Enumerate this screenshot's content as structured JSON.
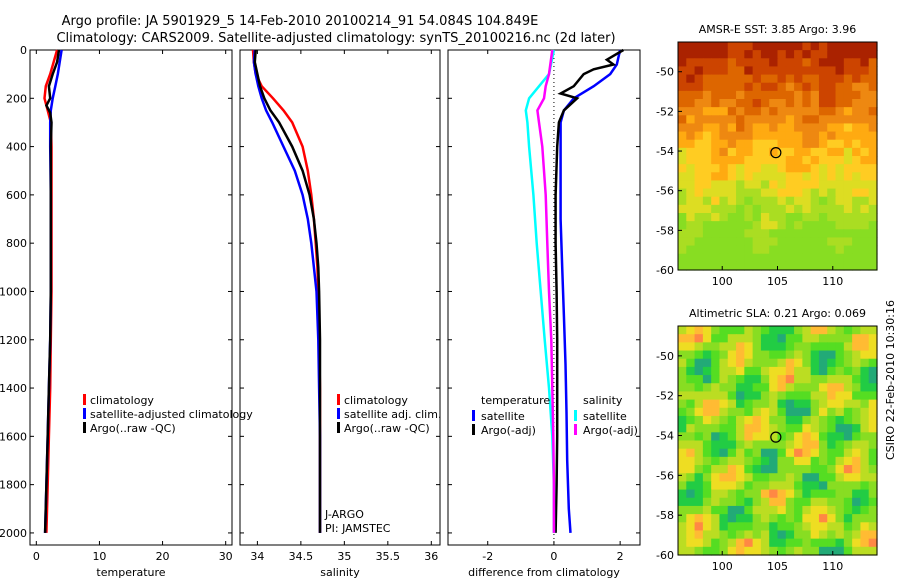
{
  "title_line1": "Argo profile: JA 5901929_5 14-Feb-2010 20100214_91 54.084S 104.849E",
  "title_line2": "Climatology: CARS2009. Satellite-adjusted climatology: synTS_20100216.nc (2d later)",
  "stamp": "CSIRO 22-Feb-2010 10:30:16",
  "colors": {
    "red": "#ff0000",
    "blue": "#0000ff",
    "black": "#000000",
    "cyan": "#00ffff",
    "magenta": "#ff00ff"
  },
  "chart_data": [
    {
      "type": "line",
      "name": "temperature-panel",
      "xlabel": "temperature",
      "ylabel": "",
      "xlim": [
        -1,
        31
      ],
      "ylim": [
        0,
        2050
      ],
      "xticks": [
        0,
        10,
        20,
        30
      ],
      "yticks": [
        0,
        200,
        400,
        600,
        800,
        1000,
        1200,
        1400,
        1600,
        1800,
        2000
      ],
      "legend": {
        "placement": "middle",
        "entries": [
          "climatology",
          "satellite-adjusted climatology",
          "Argo(..raw -QC)"
        ]
      },
      "series": [
        {
          "name": "climatology",
          "color": "red",
          "depth": [
            0,
            100,
            150,
            200,
            250,
            300,
            400,
            600,
            800,
            1000,
            1200,
            1400,
            1600,
            1800,
            2000
          ],
          "values": [
            3.3,
            2.2,
            1.5,
            1.3,
            1.8,
            2.3,
            2.4,
            2.4,
            2.4,
            2.4,
            2.3,
            2.2,
            2.0,
            1.8,
            1.6
          ]
        },
        {
          "name": "satellite-adjusted climatology",
          "color": "blue",
          "depth": [
            0,
            50,
            100,
            150,
            200,
            250,
            300,
            400,
            600,
            800,
            1000,
            1200,
            1400,
            1600,
            1800,
            2000
          ],
          "values": [
            4.0,
            3.7,
            3.4,
            3.0,
            2.6,
            2.3,
            2.2,
            2.2,
            2.3,
            2.3,
            2.3,
            2.2,
            2.0,
            1.8,
            1.6,
            1.4
          ]
        },
        {
          "name": "Argo(..raw -QC)",
          "color": "black",
          "depth": [
            0,
            50,
            100,
            150,
            200,
            230,
            260,
            300,
            400,
            600,
            800,
            1000,
            1200,
            1400,
            1600,
            1800,
            2000
          ],
          "values": [
            3.6,
            3.3,
            2.6,
            2.0,
            2.2,
            1.6,
            2.2,
            2.4,
            2.3,
            2.3,
            2.3,
            2.3,
            2.2,
            2.0,
            1.8,
            1.6,
            1.4
          ]
        }
      ]
    },
    {
      "type": "line",
      "name": "salinity-panel",
      "xlabel": "salinity",
      "ylabel": "",
      "xlim": [
        33.8,
        36.1
      ],
      "ylim": [
        0,
        2050
      ],
      "xticks": [
        34,
        34.5,
        35,
        35.5,
        36
      ],
      "yticks": [
        0,
        200,
        400,
        600,
        800,
        1000,
        1200,
        1400,
        1600,
        1800,
        2000
      ],
      "legend": {
        "placement": "middle",
        "entries": [
          "climatology",
          "satellite adj. clim.",
          "Argo(..raw -QC)"
        ]
      },
      "annotations": [
        "J-ARGO",
        "PI: JAMSTEC"
      ],
      "series": [
        {
          "name": "climatology",
          "color": "red",
          "depth": [
            0,
            50,
            100,
            150,
            200,
            250,
            300,
            400,
            500,
            600,
            700,
            800,
            900,
            1000,
            1200,
            1400,
            1600,
            1800,
            2000
          ],
          "values": [
            33.95,
            33.96,
            33.98,
            34.05,
            34.18,
            34.3,
            34.4,
            34.52,
            34.58,
            34.62,
            34.65,
            34.67,
            34.69,
            34.7,
            34.71,
            34.72,
            34.72,
            34.72,
            34.72
          ]
        },
        {
          "name": "satellite adj. clim.",
          "color": "blue",
          "depth": [
            0,
            50,
            100,
            150,
            200,
            250,
            300,
            400,
            500,
            600,
            700,
            800,
            900,
            1000,
            1200,
            1400,
            1600,
            1800,
            2000
          ],
          "values": [
            33.97,
            33.96,
            33.98,
            34.01,
            34.05,
            34.1,
            34.17,
            34.3,
            34.43,
            34.52,
            34.58,
            34.62,
            34.65,
            34.68,
            34.7,
            34.71,
            34.72,
            34.72,
            34.72
          ]
        },
        {
          "name": "Argo(..raw -QC)",
          "color": "black",
          "depth": [
            0,
            50,
            100,
            150,
            200,
            250,
            300,
            400,
            500,
            600,
            700,
            800,
            900,
            1000,
            1200,
            1400,
            1600,
            1800,
            2000
          ],
          "values": [
            33.98,
            33.97,
            34.0,
            34.03,
            34.08,
            34.15,
            34.25,
            34.4,
            34.52,
            34.6,
            34.65,
            34.68,
            34.7,
            34.71,
            34.72,
            34.72,
            34.72,
            34.72,
            34.72
          ]
        }
      ]
    },
    {
      "type": "line",
      "name": "difference-panel",
      "xlabel": "difference from climatology",
      "ylabel": "",
      "xlim": [
        -3.2,
        2.6
      ],
      "ylim": [
        0,
        2050
      ],
      "xticks": [
        -2,
        0,
        2
      ],
      "yticks": [
        0,
        200,
        400,
        600,
        800,
        1000,
        1200,
        1400,
        1600,
        1800,
        2000
      ],
      "legend": {
        "placement": "middle",
        "temperature_header": "temperature",
        "salinity_header": "salinity",
        "entries": [
          "satellite",
          "Argo(-adj)",
          "satellite",
          "Argo(-adj)"
        ]
      },
      "series": [
        {
          "name": "temperature satellite",
          "color": "blue",
          "depth": [
            0,
            60,
            100,
            150,
            200,
            250,
            300,
            500,
            700,
            900,
            1100,
            1300,
            1500,
            1700,
            1900,
            2000
          ],
          "values": [
            2.0,
            1.9,
            1.7,
            1.2,
            0.6,
            0.3,
            0.2,
            0.2,
            0.2,
            0.25,
            0.3,
            0.35,
            0.38,
            0.4,
            0.45,
            0.5
          ]
        },
        {
          "name": "temperature Argo(-adj)",
          "color": "black",
          "depth": [
            0,
            40,
            60,
            80,
            100,
            150,
            180,
            200,
            250,
            300,
            400,
            600,
            800,
            1000,
            1200,
            1400,
            1600,
            1800,
            2000
          ],
          "values": [
            2.1,
            1.6,
            1.8,
            1.2,
            0.9,
            0.6,
            0.2,
            0.7,
            0.3,
            0.15,
            0.1,
            0.05,
            0.05,
            0.08,
            0.1,
            0.1,
            0.1,
            0.08,
            0.05
          ]
        },
        {
          "name": "salinity satellite",
          "color": "cyan",
          "depth": [
            0,
            100,
            200,
            250,
            300,
            400,
            600,
            800,
            1000,
            1200,
            1400,
            1600,
            1800,
            2000
          ],
          "values": [
            0.0,
            -0.15,
            -0.75,
            -0.85,
            -0.8,
            -0.75,
            -0.62,
            -0.52,
            -0.4,
            -0.28,
            -0.15,
            -0.05,
            0.0,
            0.0
          ]
        },
        {
          "name": "salinity Argo(-adj)",
          "color": "magenta",
          "depth": [
            0,
            100,
            150,
            200,
            250,
            300,
            400,
            600,
            800,
            1000,
            1200,
            1400,
            1600,
            1800,
            2000
          ],
          "values": [
            -0.05,
            -0.15,
            -0.25,
            -0.3,
            -0.5,
            -0.45,
            -0.35,
            -0.25,
            -0.2,
            -0.15,
            -0.08,
            -0.05,
            -0.02,
            0.0,
            0.0
          ]
        }
      ]
    },
    {
      "type": "heatmap",
      "name": "sst-map",
      "title": "AMSR-E SST: 3.85 Argo: 3.96",
      "xlim": [
        96,
        114
      ],
      "ylim": [
        -60,
        -48.5
      ],
      "xticks": [
        100,
        105,
        110
      ],
      "yticks": [
        -60,
        -58,
        -56,
        -54,
        -52,
        -50
      ],
      "marker": [
        104.85,
        -54.08
      ],
      "palette": [
        "#88dd22",
        "#aadd22",
        "#dddd22",
        "#ffcc22",
        "#ffaa11",
        "#ee8811",
        "#dd6600",
        "#cc4400",
        "#aa2200"
      ]
    },
    {
      "type": "heatmap",
      "name": "sla-map",
      "title": "Altimetric SLA: 0.21 Argo: 0.069",
      "xlim": [
        96,
        114
      ],
      "ylim": [
        -60,
        -48.5
      ],
      "xticks": [
        100,
        105,
        110
      ],
      "yticks": [
        -60,
        -58,
        -56,
        -54,
        -52,
        -50
      ],
      "marker": [
        104.85,
        -54.08
      ],
      "palette": [
        "#22aa77",
        "#22cc44",
        "#55dd22",
        "#88dd22",
        "#bbdd22",
        "#eedd22",
        "#ffbb33",
        "#ff8844"
      ]
    }
  ]
}
